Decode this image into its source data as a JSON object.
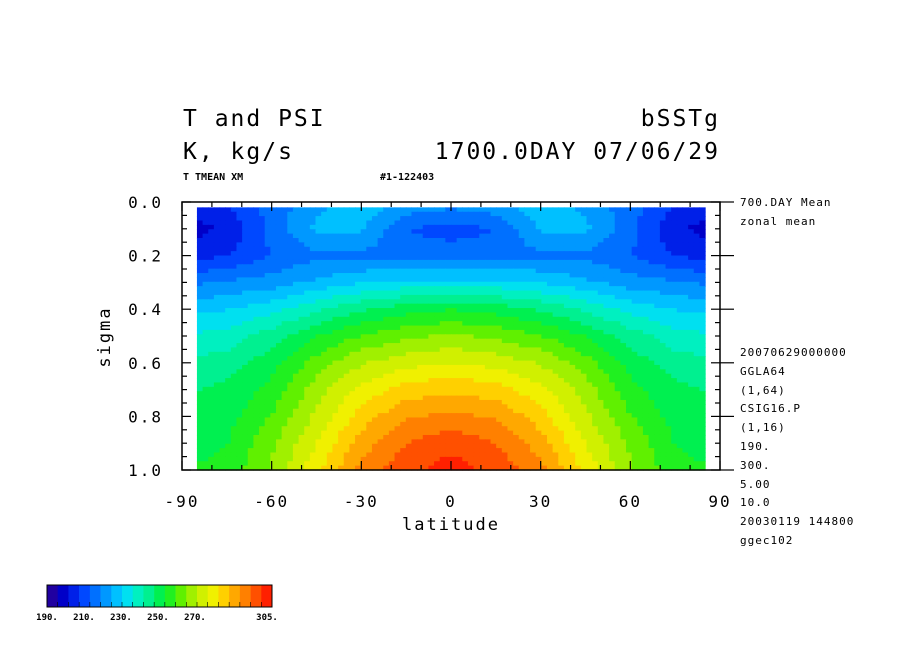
{
  "header": {
    "title_left": "T and PSI",
    "title_right": "bSSTg",
    "units_left": "K, kg/s",
    "units_right": "1700.0DAY 07/06/29",
    "var_label": "T TMEAN XM",
    "run_id": "#1-122403"
  },
  "side_info": {
    "top": [
      "700.DAY Mean",
      "zonal mean"
    ],
    "lower": [
      "20070629000000",
      "GGLA64",
      "(1,64)",
      "CSIG16.P",
      "(1,16)",
      "190.",
      "300.",
      "5.00",
      "10.0",
      "20030119 144800",
      "ggec102"
    ]
  },
  "colors": {
    "palette": [
      "#2000a0",
      "#0000c8",
      "#0020e8",
      "#0048ff",
      "#0070ff",
      "#0098ff",
      "#00c0ff",
      "#00e0f0",
      "#00f0c0",
      "#00f090",
      "#00f050",
      "#20f020",
      "#60f000",
      "#a0f000",
      "#d0f000",
      "#f0f000",
      "#ffd000",
      "#ffa800",
      "#ff8000",
      "#ff5000",
      "#ff2000"
    ]
  },
  "colorbar": {
    "labels": [
      "190.",
      "210.",
      "230.",
      "250.",
      "270.",
      "305."
    ],
    "min": 190,
    "max": 305
  },
  "chart_data": {
    "type": "heatmap",
    "title": "T and PSI",
    "xlabel": "latitude",
    "ylabel": "sigma",
    "xlim": [
      -90,
      90
    ],
    "ylim": [
      1.0,
      0.0
    ],
    "xticks": [
      -90,
      -60,
      -30,
      0,
      30,
      60,
      90
    ],
    "xtick_labels": [
      "-90",
      "-60",
      "-30",
      "0",
      "30",
      "60",
      "90"
    ],
    "yticks": [
      0.0,
      0.2,
      0.4,
      0.6,
      0.8,
      1.0
    ],
    "ytick_labels": [
      "0.0",
      "0.2",
      "0.4",
      "0.6",
      "0.8",
      "1.0"
    ],
    "x": [
      -90,
      -75,
      -60,
      -45,
      -30,
      -15,
      0,
      15,
      30,
      45,
      60,
      75,
      90
    ],
    "y": [
      0.02,
      0.1,
      0.2,
      0.3,
      0.4,
      0.5,
      0.6,
      0.7,
      0.8,
      0.9,
      1.0
    ],
    "z": [
      [
        203,
        206,
        214,
        222,
        226,
        220,
        218,
        220,
        226,
        222,
        214,
        206,
        203
      ],
      [
        198,
        202,
        214,
        224,
        224,
        212,
        210,
        212,
        224,
        224,
        214,
        202,
        198
      ],
      [
        204,
        206,
        212,
        216,
        216,
        214,
        214,
        214,
        216,
        216,
        212,
        206,
        204
      ],
      [
        216,
        218,
        220,
        224,
        228,
        230,
        230,
        230,
        228,
        224,
        220,
        218,
        216
      ],
      [
        226,
        228,
        232,
        238,
        244,
        248,
        250,
        248,
        244,
        238,
        232,
        228,
        226
      ],
      [
        234,
        236,
        242,
        250,
        256,
        260,
        262,
        260,
        256,
        250,
        242,
        236,
        234
      ],
      [
        240,
        242,
        248,
        258,
        266,
        270,
        272,
        270,
        266,
        258,
        248,
        242,
        240
      ],
      [
        244,
        246,
        252,
        264,
        274,
        280,
        282,
        280,
        274,
        264,
        252,
        246,
        244
      ],
      [
        246,
        248,
        256,
        268,
        280,
        288,
        290,
        288,
        280,
        268,
        256,
        248,
        246
      ],
      [
        248,
        250,
        260,
        272,
        286,
        294,
        298,
        294,
        286,
        272,
        260,
        250,
        248
      ],
      [
        250,
        252,
        262,
        276,
        290,
        298,
        302,
        298,
        290,
        276,
        262,
        252,
        250
      ]
    ]
  }
}
